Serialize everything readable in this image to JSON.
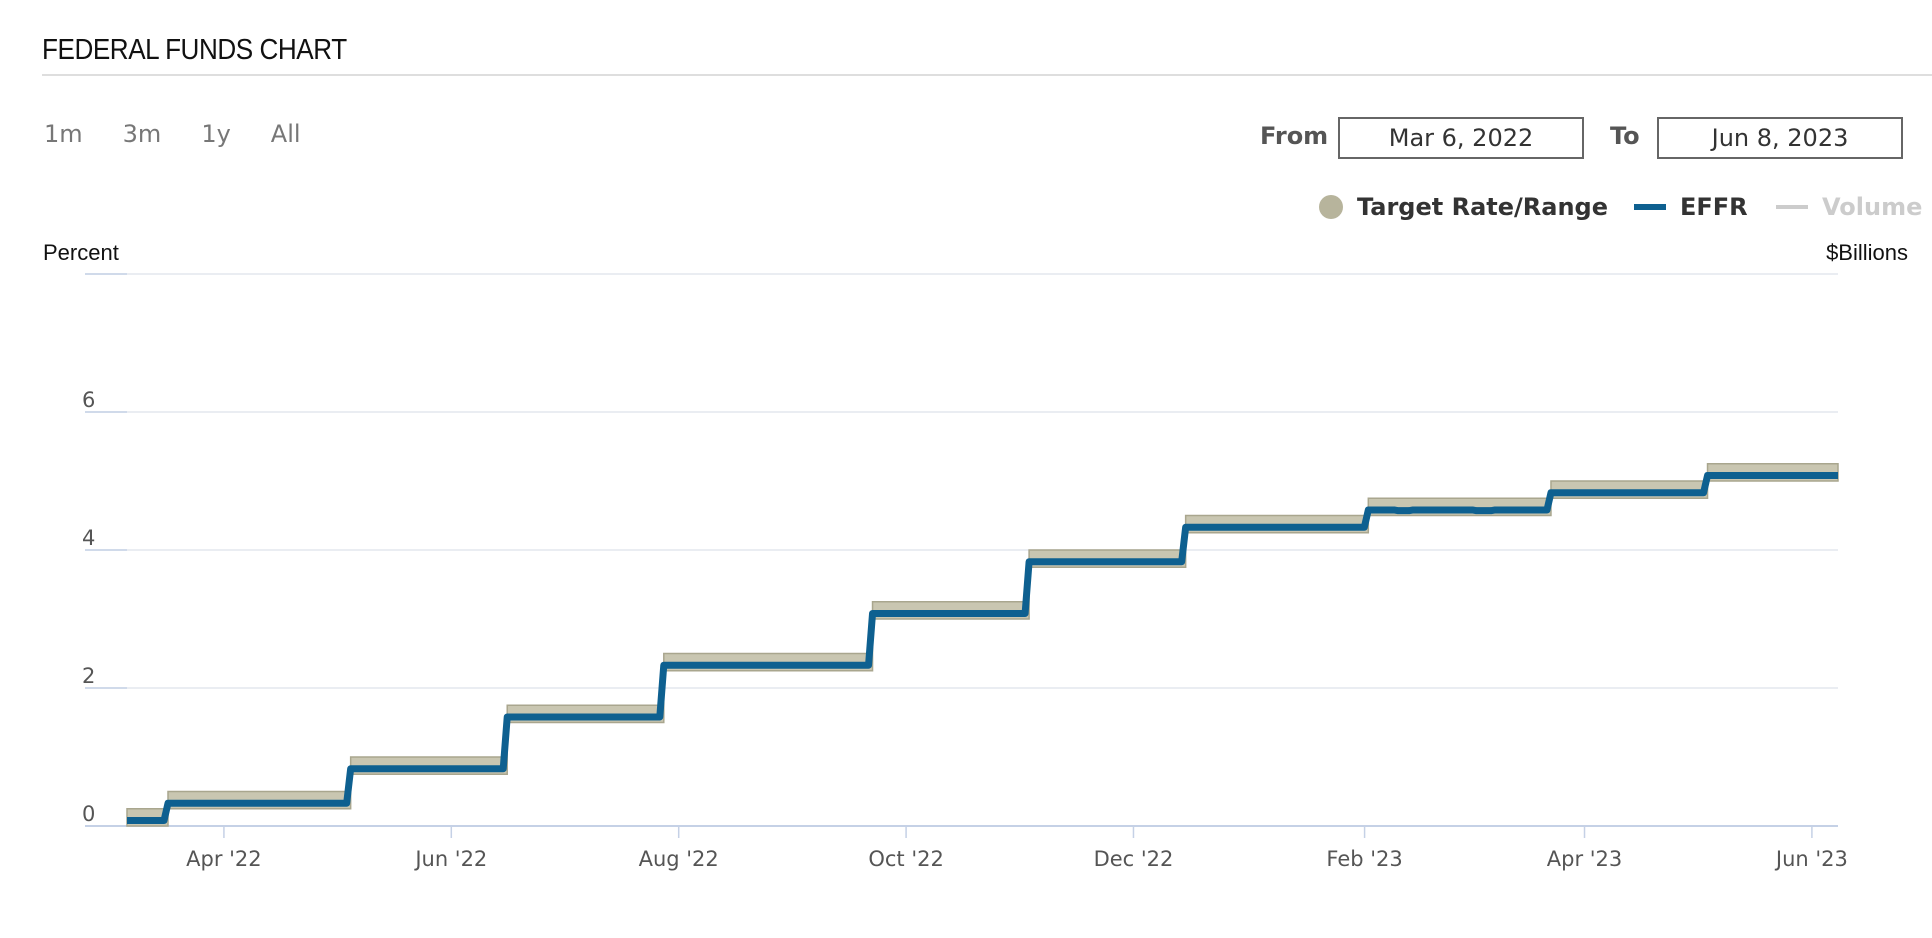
{
  "header": {
    "title": "FEDERAL FUNDS CHART"
  },
  "range_buttons": [
    "1m",
    "3m",
    "1y",
    "All"
  ],
  "date_range": {
    "from_label": "From",
    "from_value": "Mar 6, 2022",
    "to_label": "To",
    "to_value": "Jun 8, 2023"
  },
  "legend": {
    "target": {
      "label": "Target Rate/Range",
      "color": "#b7b49c"
    },
    "effr": {
      "label": "EFFR",
      "color": "#0e6090"
    },
    "volume": {
      "label": "Volume",
      "color": "#cccccc"
    }
  },
  "axes": {
    "left_unit": "Percent",
    "right_unit": "$Billions"
  },
  "chart_data": {
    "type": "line",
    "x_tick_labels": [
      "Apr '22",
      "Jun '22",
      "Aug '22",
      "Oct '22",
      "Dec '22",
      "Feb '23",
      "Apr '23",
      "Jun '23"
    ],
    "x_tick_dates": [
      "2022-04-01",
      "2022-06-01",
      "2022-08-01",
      "2022-10-01",
      "2022-12-01",
      "2023-02-01",
      "2023-04-01",
      "2023-06-01"
    ],
    "xlim": [
      "2022-03-06",
      "2023-06-08"
    ],
    "y_ticks": [
      0,
      2,
      4,
      6
    ],
    "ylim": [
      0,
      8
    ],
    "grid": true,
    "legend_position": "top-right",
    "series": [
      {
        "name": "Target Rate/Range",
        "kind": "range",
        "points": [
          {
            "date": "2022-03-06",
            "lower": 0.0,
            "upper": 0.25
          },
          {
            "date": "2022-03-17",
            "lower": 0.25,
            "upper": 0.5
          },
          {
            "date": "2022-05-05",
            "lower": 0.75,
            "upper": 1.0
          },
          {
            "date": "2022-06-16",
            "lower": 1.5,
            "upper": 1.75
          },
          {
            "date": "2022-07-28",
            "lower": 2.25,
            "upper": 2.5
          },
          {
            "date": "2022-09-22",
            "lower": 3.0,
            "upper": 3.25
          },
          {
            "date": "2022-11-03",
            "lower": 3.75,
            "upper": 4.0
          },
          {
            "date": "2022-12-15",
            "lower": 4.25,
            "upper": 4.5
          },
          {
            "date": "2023-02-02",
            "lower": 4.5,
            "upper": 4.75
          },
          {
            "date": "2023-03-23",
            "lower": 4.75,
            "upper": 5.0
          },
          {
            "date": "2023-05-04",
            "lower": 5.0,
            "upper": 5.25
          },
          {
            "date": "2023-06-08",
            "lower": 5.0,
            "upper": 5.25
          }
        ]
      },
      {
        "name": "EFFR",
        "kind": "step",
        "points": [
          {
            "date": "2022-03-06",
            "value": 0.08
          },
          {
            "date": "2022-03-17",
            "value": 0.33
          },
          {
            "date": "2022-05-05",
            "value": 0.83
          },
          {
            "date": "2022-06-16",
            "value": 1.58
          },
          {
            "date": "2022-07-28",
            "value": 2.33
          },
          {
            "date": "2022-09-22",
            "value": 3.08
          },
          {
            "date": "2022-11-03",
            "value": 3.83
          },
          {
            "date": "2022-12-15",
            "value": 4.33
          },
          {
            "date": "2023-02-02",
            "value": 4.58
          },
          {
            "date": "2023-02-10",
            "value": 4.57
          },
          {
            "date": "2023-02-14",
            "value": 4.58
          },
          {
            "date": "2023-03-01",
            "value": 4.58
          },
          {
            "date": "2023-03-03",
            "value": 4.57
          },
          {
            "date": "2023-03-08",
            "value": 4.58
          },
          {
            "date": "2023-03-23",
            "value": 4.83
          },
          {
            "date": "2023-05-04",
            "value": 5.08
          },
          {
            "date": "2023-06-08",
            "value": 5.08
          }
        ]
      }
    ]
  }
}
